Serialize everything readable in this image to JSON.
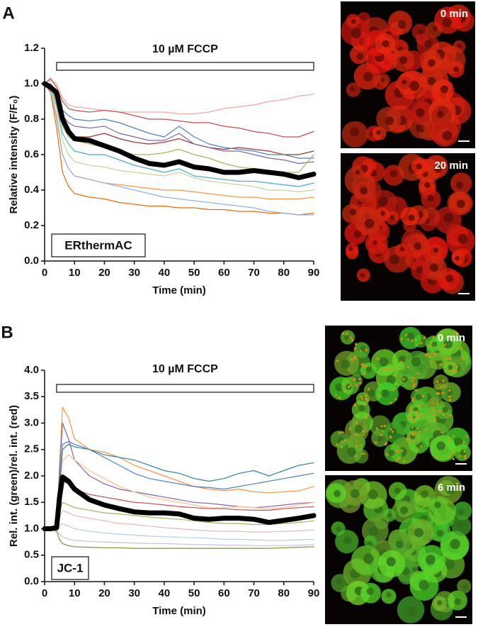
{
  "chart_data": [
    {
      "type": "line",
      "panel_label": "A",
      "x_label": "Time (min)",
      "y_label": "Relative intensity (F/F₀)",
      "annotation": {
        "text": "10 µM FCCP",
        "x_range": [
          4,
          90
        ]
      },
      "label_box": "ERthermAC",
      "images": [
        {
          "label": "0 min"
        },
        {
          "label": "20 min"
        }
      ],
      "xlim": [
        0,
        90
      ],
      "xticks": [
        0,
        10,
        20,
        30,
        40,
        50,
        60,
        70,
        80,
        90
      ],
      "ylim": [
        0,
        1.2
      ],
      "yticks": [
        {
          "value": 0,
          "label": "0.0"
        },
        {
          "value": 0.2,
          "label": "0.2"
        },
        {
          "value": 0.4,
          "label": "0.4"
        },
        {
          "value": 0.6,
          "label": "0.6"
        },
        {
          "value": 0.8,
          "label": "0.8"
        },
        {
          "value": 1.0,
          "label": "1.0"
        },
        {
          "value": 1.2,
          "label": "1.2"
        }
      ],
      "x": [
        0,
        2,
        4,
        6,
        8,
        10,
        15,
        20,
        25,
        30,
        35,
        40,
        45,
        50,
        55,
        60,
        65,
        70,
        75,
        80,
        85,
        90
      ],
      "series": [
        {
          "color": "#f4a6a6",
          "values": [
            1.0,
            1.02,
            1.0,
            0.92,
            0.88,
            0.87,
            0.86,
            0.85,
            0.84,
            0.84,
            0.84,
            0.84,
            0.83,
            0.83,
            0.84,
            0.86,
            0.87,
            0.88,
            0.9,
            0.91,
            0.93,
            0.94
          ]
        },
        {
          "color": "#c0504d",
          "values": [
            1.0,
            1.03,
            0.98,
            0.9,
            0.86,
            0.85,
            0.84,
            0.85,
            0.84,
            0.82,
            0.8,
            0.8,
            0.79,
            0.78,
            0.78,
            0.76,
            0.75,
            0.73,
            0.72,
            0.7,
            0.7,
            0.73
          ]
        },
        {
          "color": "#953735",
          "values": [
            1.0,
            0.98,
            0.92,
            0.78,
            0.72,
            0.7,
            0.7,
            0.72,
            0.69,
            0.67,
            0.66,
            0.67,
            0.69,
            0.66,
            0.64,
            0.63,
            0.64,
            0.63,
            0.62,
            0.6,
            0.6,
            0.62
          ]
        },
        {
          "color": "#4f81bd",
          "values": [
            1.0,
            1.0,
            0.95,
            0.85,
            0.82,
            0.8,
            0.79,
            0.8,
            0.78,
            0.75,
            0.72,
            0.7,
            0.76,
            0.7,
            0.66,
            0.64,
            0.63,
            0.62,
            0.6,
            0.6,
            0.58,
            0.58
          ]
        },
        {
          "color": "#8064a2",
          "values": [
            1.0,
            0.99,
            0.93,
            0.82,
            0.78,
            0.76,
            0.75,
            0.76,
            0.72,
            0.7,
            0.68,
            0.68,
            0.72,
            0.66,
            0.64,
            0.62,
            0.62,
            0.6,
            0.58,
            0.57,
            0.55,
            0.56
          ]
        },
        {
          "color": "#9bbb59",
          "values": [
            1.0,
            0.98,
            0.9,
            0.76,
            0.7,
            0.68,
            0.66,
            0.64,
            0.62,
            0.6,
            0.6,
            0.61,
            0.63,
            0.6,
            0.58,
            0.55,
            0.53,
            0.52,
            0.5,
            0.5,
            0.5,
            0.6
          ]
        },
        {
          "color": "#4bacc6",
          "values": [
            1.0,
            0.97,
            0.88,
            0.72,
            0.66,
            0.62,
            0.6,
            0.6,
            0.57,
            0.54,
            0.52,
            0.5,
            0.52,
            0.48,
            0.47,
            0.46,
            0.45,
            0.45,
            0.44,
            0.43,
            0.42,
            0.44
          ]
        },
        {
          "color": "#c3d69b",
          "values": [
            1.0,
            0.97,
            0.86,
            0.68,
            0.6,
            0.56,
            0.54,
            0.53,
            0.51,
            0.5,
            0.49,
            0.48,
            0.5,
            0.47,
            0.45,
            0.44,
            0.43,
            0.42,
            0.4,
            0.4,
            0.39,
            0.4
          ]
        },
        {
          "color": "#f79646",
          "values": [
            1.0,
            0.96,
            0.82,
            0.6,
            0.52,
            0.48,
            0.46,
            0.44,
            0.43,
            0.42,
            0.41,
            0.4,
            0.4,
            0.39,
            0.38,
            0.37,
            0.36,
            0.36,
            0.35,
            0.35,
            0.35,
            0.36
          ]
        },
        {
          "color": "#e46c0a",
          "values": [
            1.0,
            0.95,
            0.75,
            0.5,
            0.42,
            0.38,
            0.36,
            0.35,
            0.33,
            0.32,
            0.31,
            0.31,
            0.3,
            0.3,
            0.29,
            0.29,
            0.28,
            0.28,
            0.27,
            0.27,
            0.26,
            0.27
          ]
        },
        {
          "color": "#95b3d7",
          "values": [
            1.0,
            0.96,
            0.8,
            0.6,
            0.52,
            0.48,
            0.46,
            0.44,
            0.42,
            0.4,
            0.38,
            0.36,
            0.35,
            0.34,
            0.33,
            0.32,
            0.31,
            0.3,
            0.28,
            0.27,
            0.26,
            0.26
          ]
        },
        {
          "color": "#000000",
          "line_width": 7,
          "values": [
            1.0,
            0.98,
            0.95,
            0.8,
            0.73,
            0.69,
            0.68,
            0.65,
            0.62,
            0.58,
            0.55,
            0.54,
            0.56,
            0.53,
            0.52,
            0.5,
            0.5,
            0.51,
            0.5,
            0.49,
            0.47,
            0.49
          ]
        }
      ]
    },
    {
      "type": "line",
      "panel_label": "B",
      "x_label": "Time (min)",
      "y_label": "Rel. int. (green)/rel. int. (red)",
      "annotation": {
        "text": "10 µM FCCP",
        "x_range": [
          4,
          90
        ]
      },
      "label_box": "JC-1",
      "images": [
        {
          "label": "0 min"
        },
        {
          "label": "6 min"
        }
      ],
      "xlim": [
        0,
        90
      ],
      "xticks": [
        0,
        10,
        20,
        30,
        40,
        50,
        60,
        70,
        80,
        90
      ],
      "ylim": [
        0,
        4.0
      ],
      "yticks": [
        {
          "value": 0,
          "label": "0.0"
        },
        {
          "value": 0.5,
          "label": "0.5"
        },
        {
          "value": 1.0,
          "label": "1.0"
        },
        {
          "value": 1.5,
          "label": "1.5"
        },
        {
          "value": 2.0,
          "label": "2.0"
        },
        {
          "value": 2.5,
          "label": "2.5"
        },
        {
          "value": 3.0,
          "label": "3.0"
        },
        {
          "value": 3.5,
          "label": "3.5"
        },
        {
          "value": 4.0,
          "label": "4.0"
        }
      ],
      "x": [
        0,
        2,
        4,
        5,
        6,
        8,
        10,
        15,
        20,
        25,
        30,
        35,
        40,
        45,
        50,
        55,
        60,
        65,
        70,
        75,
        80,
        85,
        90
      ],
      "series": [
        {
          "color": "#f79646",
          "values": [
            1,
            1,
            1.05,
            2.2,
            3.3,
            3.1,
            2.7,
            2.5,
            2.45,
            2.35,
            2.2,
            2.1,
            2.0,
            1.9,
            1.8,
            1.75,
            1.72,
            1.75,
            1.7,
            1.68,
            1.7,
            1.72,
            1.8
          ]
        },
        {
          "color": "#31859c",
          "values": [
            1,
            1,
            1.02,
            1.8,
            2.5,
            2.6,
            2.55,
            2.5,
            2.4,
            2.35,
            2.3,
            2.2,
            2.1,
            2.05,
            1.95,
            1.9,
            1.95,
            2.05,
            2.1,
            2.0,
            2.1,
            2.2,
            2.25
          ]
        },
        {
          "color": "#4f81bd",
          "values": [
            1,
            1,
            1.03,
            1.9,
            2.6,
            2.65,
            2.6,
            2.5,
            2.35,
            2.2,
            2.05,
            1.95,
            1.9,
            1.85,
            1.8,
            1.78,
            1.75,
            1.8,
            1.85,
            1.9,
            1.95,
            2.0,
            2.05
          ]
        },
        {
          "color": "#8064a2",
          "values": [
            1,
            1,
            1.02,
            2.1,
            3.0,
            2.7,
            2.3,
            2.0,
            1.85,
            1.75,
            1.7,
            1.65,
            1.6,
            1.55,
            1.5,
            1.48,
            1.45,
            1.42,
            1.4,
            1.42,
            1.45,
            1.48,
            1.5
          ]
        },
        {
          "color": "#fac090",
          "values": [
            1,
            1,
            1.02,
            1.6,
            2.3,
            2.4,
            2.3,
            2.1,
            1.95,
            1.8,
            1.7,
            1.6,
            1.55,
            1.5,
            1.45,
            1.4,
            1.4,
            1.42,
            1.4,
            1.38,
            1.4,
            1.45,
            1.5
          ]
        },
        {
          "color": "#c0504d",
          "values": [
            1,
            1,
            1.01,
            1.5,
            1.9,
            1.85,
            1.75,
            1.65,
            1.6,
            1.55,
            1.5,
            1.48,
            1.45,
            1.42,
            1.4,
            1.38,
            1.38,
            1.36,
            1.35,
            1.35,
            1.38,
            1.4,
            1.42
          ]
        },
        {
          "color": "#9bbb59",
          "values": [
            1,
            1,
            1.01,
            1.3,
            1.5,
            1.45,
            1.4,
            1.35,
            1.3,
            1.28,
            1.25,
            1.22,
            1.2,
            1.18,
            1.15,
            1.12,
            1.1,
            1.1,
            1.08,
            1.08,
            1.1,
            1.12,
            1.15
          ]
        },
        {
          "color": "#e6b9b8",
          "values": [
            1,
            1,
            1,
            1.2,
            1.35,
            1.3,
            1.25,
            1.2,
            1.15,
            1.1,
            1.08,
            1.05,
            1.02,
            1.0,
            0.98,
            0.96,
            0.95,
            0.95,
            0.94,
            0.94,
            0.95,
            0.96,
            0.98
          ]
        },
        {
          "color": "#b9cde5",
          "values": [
            1,
            1,
            0.99,
            1.05,
            1.1,
            1.05,
            1.0,
            0.95,
            0.92,
            0.9,
            0.88,
            0.86,
            0.85,
            0.84,
            0.83,
            0.82,
            0.8,
            0.8,
            0.79,
            0.78,
            0.78,
            0.79,
            0.8
          ]
        },
        {
          "color": "#ccc0da",
          "values": [
            1,
            1,
            0.98,
            0.9,
            0.85,
            0.8,
            0.78,
            0.76,
            0.75,
            0.74,
            0.73,
            0.72,
            0.72,
            0.71,
            0.7,
            0.7,
            0.69,
            0.69,
            0.68,
            0.68,
            0.68,
            0.69,
            0.7
          ]
        },
        {
          "color": "#77933c",
          "values": [
            1,
            1,
            0.95,
            0.8,
            0.72,
            0.68,
            0.66,
            0.65,
            0.64,
            0.64,
            0.63,
            0.63,
            0.63,
            0.63,
            0.63,
            0.63,
            0.63,
            0.63,
            0.63,
            0.63,
            0.64,
            0.65,
            0.66
          ]
        },
        {
          "color": "#000000",
          "line_width": 7,
          "values": [
            1.0,
            1.0,
            1.02,
            1.6,
            1.98,
            1.9,
            1.75,
            1.55,
            1.45,
            1.38,
            1.32,
            1.3,
            1.3,
            1.28,
            1.2,
            1.18,
            1.2,
            1.2,
            1.18,
            1.12,
            1.16,
            1.2,
            1.25
          ]
        }
      ]
    }
  ]
}
